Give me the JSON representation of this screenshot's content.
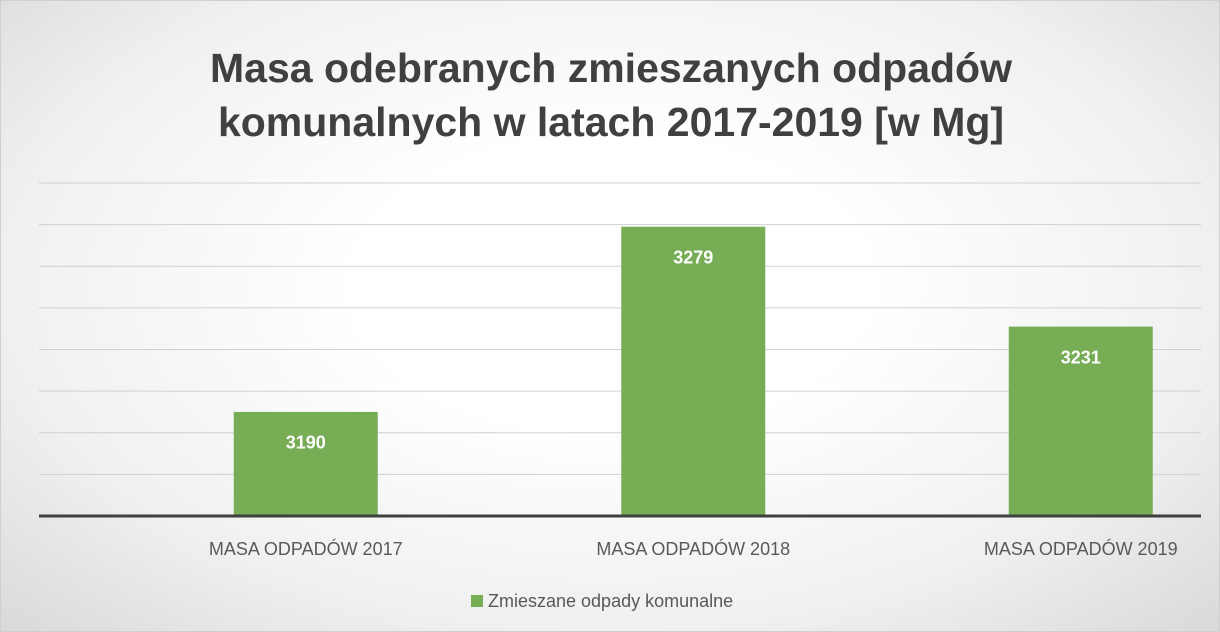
{
  "chart_data": {
    "type": "bar",
    "title": "Masa odebranych zmieszanych odpadów komunalnych w latach 2017-2019 [w Mg]",
    "categories": [
      "MASA ODPADÓW 2017",
      "MASA ODPADÓW 2018",
      "MASA ODPADÓW 2019"
    ],
    "series": [
      {
        "name": "Zmieszane odpady komunalne",
        "color": "#76ad55",
        "values": [
          3190,
          3279,
          3231
        ]
      }
    ],
    "ylim": [
      3140,
      3300
    ],
    "yticks": [
      3140,
      3160,
      3180,
      3200,
      3220,
      3240,
      3260,
      3280,
      3300
    ],
    "grid": true,
    "legend": "bottom"
  }
}
